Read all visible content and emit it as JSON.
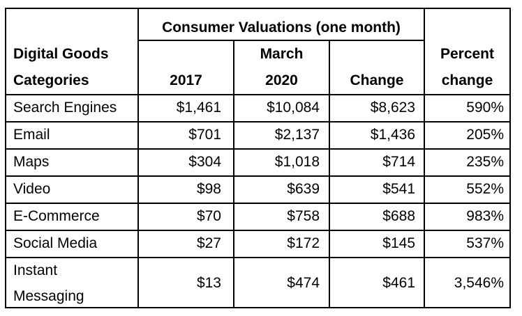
{
  "table": {
    "group_header": "Consumer Valuations (one month)",
    "headers": {
      "category_line1": "Digital Goods",
      "category_line2": "Categories",
      "y2017": "2017",
      "march_line1": "March",
      "march_line2": "2020",
      "change": "Change",
      "percent_line1": "Percent",
      "percent_line2": "change"
    },
    "rows": [
      {
        "category": "Search Engines",
        "v2017": "$1,461",
        "v2020": "$10,084",
        "change": "$8,623",
        "percent": "590%"
      },
      {
        "category": "Email",
        "v2017": "$701",
        "v2020": "$2,137",
        "change": "$1,436",
        "percent": "205%"
      },
      {
        "category": "Maps",
        "v2017": "$304",
        "v2020": "$1,018",
        "change": "$714",
        "percent": "235%"
      },
      {
        "category": "Video",
        "v2017": "$98",
        "v2020": "$639",
        "change": "$541",
        "percent": "552%"
      },
      {
        "category": "E-Commerce",
        "v2017": "$70",
        "v2020": "$758",
        "change": "$688",
        "percent": "983%"
      },
      {
        "category": "Social Media",
        "v2017": "$27",
        "v2020": "$172",
        "change": "$145",
        "percent": "537%"
      },
      {
        "category_line1": "Instant",
        "category_line2": "Messaging",
        "v2017": "$13",
        "v2020": "$474",
        "change": "$461",
        "percent": "3,546%"
      }
    ]
  }
}
